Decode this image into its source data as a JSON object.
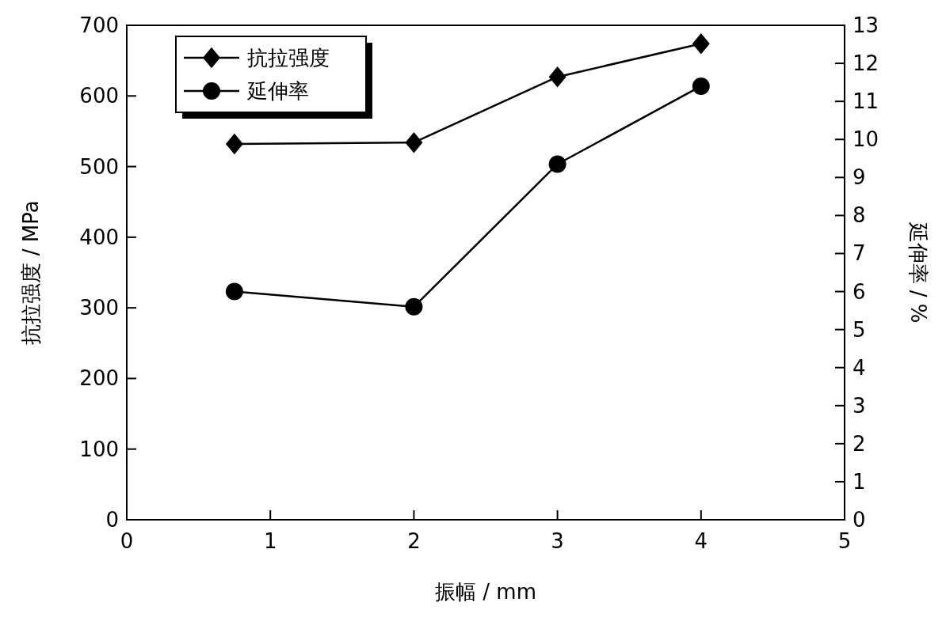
{
  "chart_data": {
    "type": "line",
    "xlabel": "振幅 / mm",
    "ylabel": "抗拉强度 / MPa",
    "y2label": "延伸率 / %",
    "x": [
      0.75,
      2,
      3,
      4
    ],
    "series": [
      {
        "name": "抗拉强度",
        "color": "#000000",
        "marker": "diamond",
        "values": [
          532,
          534,
          627,
          674
        ]
      },
      {
        "name": "延伸率",
        "color": "#000000",
        "marker": "circle",
        "axis": "y2",
        "values": [
          6.0,
          5.6,
          9.35,
          11.4
        ]
      }
    ],
    "xlim": [
      0,
      5
    ],
    "xticks": [
      0,
      1,
      2,
      3,
      4,
      5
    ],
    "ylim": [
      0,
      700
    ],
    "yticks": [
      0,
      100,
      200,
      300,
      400,
      500,
      600,
      700
    ],
    "y2lim": [
      0,
      13
    ],
    "y2ticks": [
      0,
      1,
      2,
      3,
      4,
      5,
      6,
      7,
      8,
      9,
      10,
      11,
      12,
      13
    ],
    "legend": "top left",
    "grid": false,
    "line_style": "solid"
  }
}
